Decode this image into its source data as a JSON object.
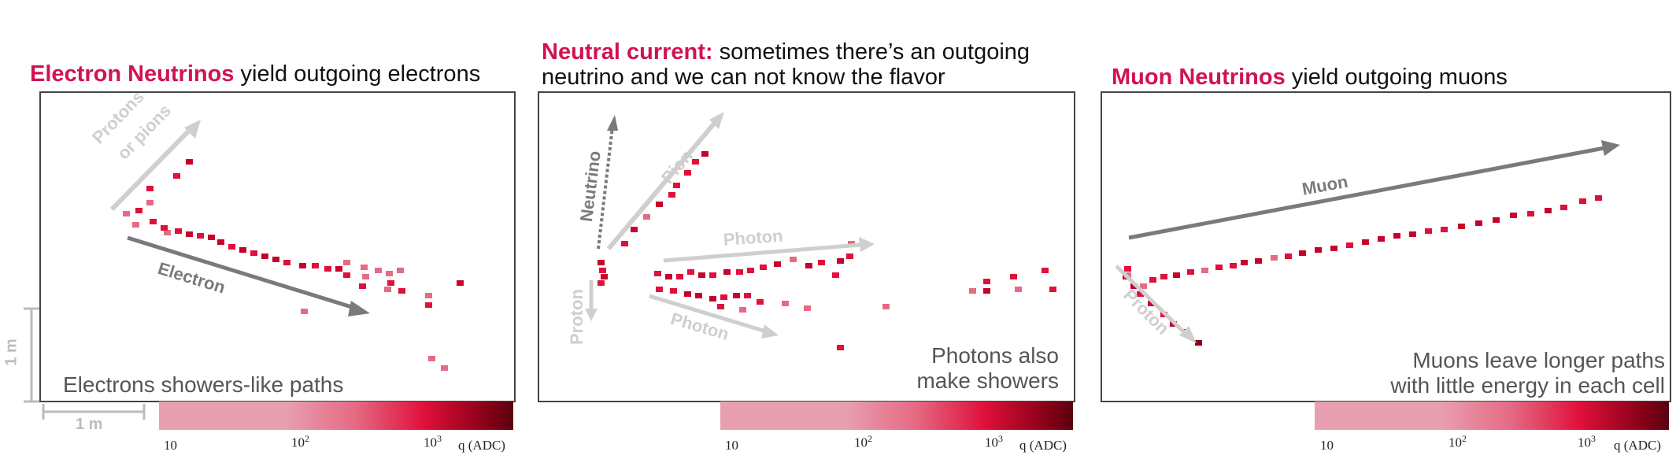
{
  "panels": [
    {
      "title_highlight": "Electron Neutrinos",
      "title_rest": " yield outgoing electrons",
      "caption": "Electrons showers-like paths",
      "arrows": [
        {
          "label": "Protons",
          "color": "#c8c8c8"
        },
        {
          "label": "or pions",
          "color": "#c8c8c8"
        },
        {
          "label": "Electron",
          "color": "#777777"
        }
      ]
    },
    {
      "title_highlight": "Neutral current:",
      "title_rest": " sometimes there’s an outgoing",
      "title_line2": "neutrino and we can not know the flavor",
      "caption_line1": "Photons also",
      "caption_line2": "make showers",
      "arrows": [
        {
          "label": "Neutrino",
          "color": "#777777"
        },
        {
          "label": "Pion",
          "color": "#c8c8c8"
        },
        {
          "label": "Photon",
          "color": "#c8c8c8"
        },
        {
          "label": "Photon",
          "color": "#c8c8c8"
        },
        {
          "label": "Proton",
          "color": "#c8c8c8"
        }
      ]
    },
    {
      "title_highlight": "Muon Neutrinos",
      "title_rest": " yield outgoing muons",
      "caption_line1": "Muons leave longer paths",
      "caption_line2": "with little energy in each cell",
      "arrows": [
        {
          "label": "Muon",
          "color": "#777777"
        },
        {
          "label": "Proton",
          "color": "#c8c8c8"
        }
      ]
    }
  ],
  "scale": {
    "vertical": "1 m",
    "horizontal": "1 m"
  },
  "colorbar": {
    "ticks": [
      "10",
      "10",
      "10"
    ],
    "exponents": [
      "",
      "2",
      "3"
    ],
    "unit": "q (ADC)"
  },
  "colors": {
    "highlight": "#d0144f",
    "low": "#e8a0b0",
    "mid": "#e0103a",
    "high": "#6a0010"
  }
}
